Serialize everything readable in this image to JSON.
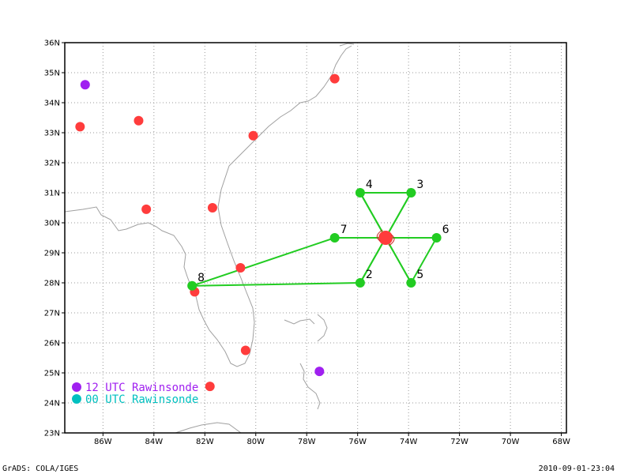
{
  "plot": {
    "lon_range": [
      -87.5,
      -67.8
    ],
    "lat_range": [
      23,
      36
    ],
    "lon_ticks": [
      -86,
      -84,
      -82,
      -80,
      -78,
      -76,
      -74,
      -72,
      -70,
      -68
    ],
    "lat_ticks": [
      23,
      24,
      25,
      26,
      27,
      28,
      29,
      30,
      31,
      32,
      33,
      34,
      35,
      36
    ],
    "lon_tick_labels": [
      "86W",
      "84W",
      "82W",
      "80W",
      "78W",
      "76W",
      "74W",
      "72W",
      "70W",
      "68W"
    ],
    "lat_tick_labels": [
      "23N",
      "24N",
      "25N",
      "26N",
      "27N",
      "28N",
      "29N",
      "30N",
      "31N",
      "32N",
      "33N",
      "34N",
      "35N",
      "36N"
    ],
    "grid": true
  },
  "colors": {
    "rawinsonde_12utc": "#a020f0",
    "rawinsonde_00utc": "#00c0c0",
    "station": "#ff3c3c",
    "dropsonde": "#22cc22",
    "coastline": "#a0a0a0",
    "storm_center": "#ff3c3c"
  },
  "storm": {
    "lon": -74.9,
    "lat": 29.5,
    "icon": "hurricane-symbol"
  },
  "dropsondes": [
    {
      "id": "2",
      "lon": -75.9,
      "lat": 28.0
    },
    {
      "id": "3",
      "lon": -73.9,
      "lat": 31.0
    },
    {
      "id": "4",
      "lon": -75.9,
      "lat": 31.0
    },
    {
      "id": "5",
      "lon": -73.9,
      "lat": 28.0
    },
    {
      "id": "6",
      "lon": -72.9,
      "lat": 29.5
    },
    {
      "id": "7",
      "lon": -76.9,
      "lat": 29.5
    },
    {
      "id": "8",
      "lon": -82.5,
      "lat": 27.9
    }
  ],
  "flight_track": [
    "8",
    "7",
    "6",
    "5",
    "4",
    "3",
    "2",
    "8"
  ],
  "red_stations": [
    {
      "lon": -86.9,
      "lat": 33.2
    },
    {
      "lon": -84.6,
      "lat": 33.4
    },
    {
      "lon": -84.3,
      "lat": 30.45
    },
    {
      "lon": -81.7,
      "lat": 30.5
    },
    {
      "lon": -80.1,
      "lat": 32.9
    },
    {
      "lon": -76.9,
      "lat": 34.8
    },
    {
      "lon": -80.6,
      "lat": 28.5
    },
    {
      "lon": -82.4,
      "lat": 27.7
    },
    {
      "lon": -80.4,
      "lat": 25.75
    },
    {
      "lon": -81.8,
      "lat": 24.55
    }
  ],
  "purple_stations": [
    {
      "lon": -86.7,
      "lat": 34.6
    },
    {
      "lon": -77.5,
      "lat": 25.05
    }
  ],
  "legend": {
    "entry_12utc": "12 UTC Rawinsonde",
    "entry_00utc": "00 UTC Rawinsonde"
  },
  "footer": {
    "left": "GrADS: COLA/IGES",
    "right": "2010-09-01-23:04"
  }
}
